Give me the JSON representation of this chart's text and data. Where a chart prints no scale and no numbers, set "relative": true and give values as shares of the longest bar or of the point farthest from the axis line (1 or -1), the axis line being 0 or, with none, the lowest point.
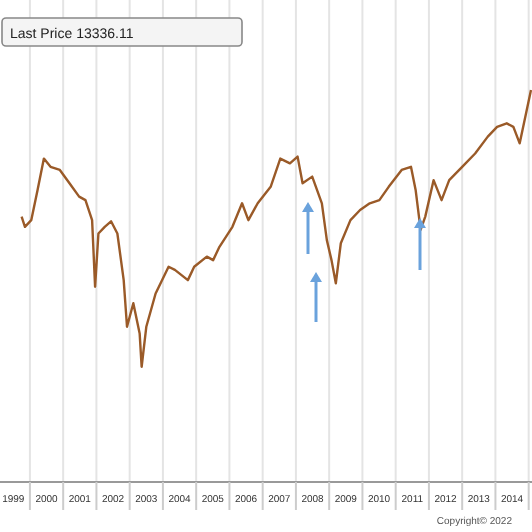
{
  "chart_data": {
    "type": "line",
    "title": "Last Price 13336.11",
    "relative": true,
    "grid": "x",
    "line_style": "solid",
    "xlim": [
      1999.1,
      2015.1
    ],
    "xticks": [
      {
        "value": 1999.5,
        "label": "1999"
      },
      {
        "value": 2000,
        "label": null
      },
      {
        "value": 2000.5,
        "label": "2000"
      },
      {
        "value": 2001,
        "label": null
      },
      {
        "value": 2001.5,
        "label": "2001"
      },
      {
        "value": 2002,
        "label": null
      },
      {
        "value": 2002.5,
        "label": "2002"
      },
      {
        "value": 2003,
        "label": null
      },
      {
        "value": 2003.5,
        "label": "2003"
      },
      {
        "value": 2004,
        "label": null
      },
      {
        "value": 2004.5,
        "label": "2004"
      },
      {
        "value": 2005,
        "label": null
      },
      {
        "value": 2005.5,
        "label": "2005"
      },
      {
        "value": 2006,
        "label": null
      },
      {
        "value": 2006.5,
        "label": "2006"
      },
      {
        "value": 2007,
        "label": null
      },
      {
        "value": 2007.5,
        "label": "2007"
      },
      {
        "value": 2008,
        "label": null
      },
      {
        "value": 2008.5,
        "label": "2008"
      },
      {
        "value": 2009,
        "label": null
      },
      {
        "value": 2009.5,
        "label": "2009"
      },
      {
        "value": 2010,
        "label": null
      },
      {
        "value": 2010.5,
        "label": "2010"
      },
      {
        "value": 2011,
        "label": null
      },
      {
        "value": 2011.5,
        "label": "2011"
      },
      {
        "value": 2012,
        "label": null
      },
      {
        "value": 2012.5,
        "label": "2012"
      },
      {
        "value": 2013,
        "label": null
      },
      {
        "value": 2013.5,
        "label": "2013"
      },
      {
        "value": 2014,
        "label": null
      },
      {
        "value": 2014.5,
        "label": "2014"
      },
      {
        "value": 2015,
        "label": null
      }
    ],
    "x": [
      1999.75,
      1999.85,
      2000.04,
      2000.23,
      2000.42,
      2000.62,
      2000.9,
      2001.19,
      2001.48,
      2001.67,
      2001.87,
      2001.96,
      2002.06,
      2002.25,
      2002.44,
      2002.63,
      2002.82,
      2002.92,
      2003.11,
      2003.3,
      2003.36,
      2003.5,
      2003.78,
      2004.17,
      2004.36,
      2004.75,
      2004.94,
      2005.32,
      2005.51,
      2005.7,
      2006.09,
      2006.38,
      2006.57,
      2006.85,
      2007.24,
      2007.53,
      2007.82,
      2008.05,
      2008.2,
      2008.49,
      2008.78,
      2008.93,
      2009.07,
      2009.2,
      2009.35,
      2009.64,
      2009.93,
      2010.22,
      2010.51,
      2010.79,
      2011.18,
      2011.46,
      2011.6,
      2011.75,
      2011.89,
      2012.14,
      2012.38,
      2012.61,
      2013.0,
      2013.39,
      2013.77,
      2014.05,
      2014.34,
      2014.54,
      2014.73,
      2014.92,
      2015.07
    ],
    "series": [
      {
        "color": "#9a5a28",
        "values": [
          0.677,
          0.651,
          0.668,
          0.745,
          0.825,
          0.804,
          0.796,
          0.762,
          0.728,
          0.719,
          0.668,
          0.498,
          0.634,
          0.651,
          0.665,
          0.634,
          0.515,
          0.396,
          0.456,
          0.379,
          0.294,
          0.396,
          0.481,
          0.549,
          0.541,
          0.515,
          0.549,
          0.575,
          0.566,
          0.6,
          0.651,
          0.711,
          0.668,
          0.711,
          0.753,
          0.825,
          0.813,
          0.83,
          0.762,
          0.779,
          0.711,
          0.617,
          0.566,
          0.507,
          0.609,
          0.668,
          0.694,
          0.711,
          0.719,
          0.753,
          0.796,
          0.804,
          0.745,
          0.643,
          0.677,
          0.77,
          0.719,
          0.77,
          0.804,
          0.838,
          0.881,
          0.906,
          0.915,
          0.906,
          0.864,
          0.94,
          1
        ]
      }
    ],
    "annotations": [
      "Copyright© 2022"
    ]
  }
}
